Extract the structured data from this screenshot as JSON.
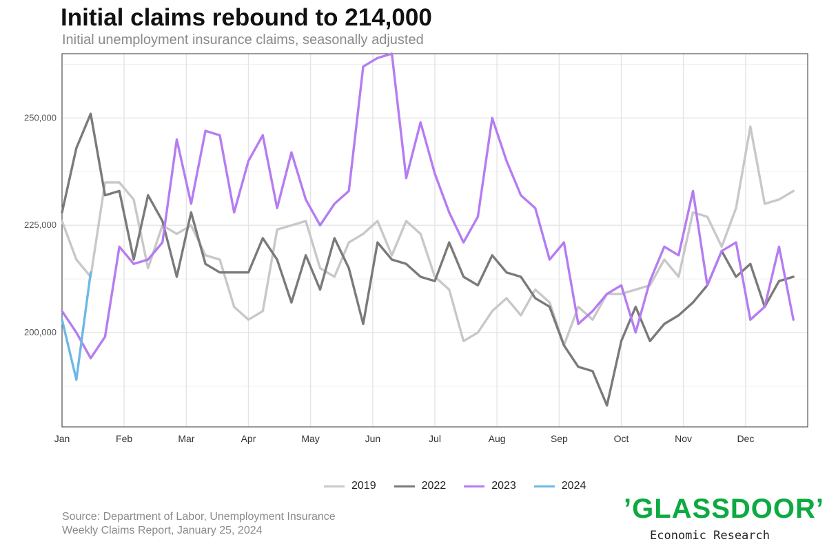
{
  "header": {
    "title": "Initial claims rebound to 214,000",
    "subtitle": "Initial unemployment insurance claims, seasonally adjusted"
  },
  "chart_data": {
    "type": "line",
    "title": "Initial claims rebound to 214,000",
    "subtitle": "Initial unemployment insurance claims, seasonally adjusted",
    "xlabel": "",
    "ylabel": "",
    "x_unit": "week of year",
    "x_ticks": [
      "Jan",
      "Feb",
      "Mar",
      "Apr",
      "May",
      "Jun",
      "Jul",
      "Aug",
      "Sep",
      "Oct",
      "Nov",
      "Dec"
    ],
    "y_ticks": [
      "200,000",
      "225,000",
      "250,000"
    ],
    "ylim": [
      178000,
      265000
    ],
    "grid": true,
    "legend": "bottom",
    "series": [
      {
        "name": "2019",
        "color": "#c8c8c8",
        "x": [
          1,
          2,
          3,
          4,
          5,
          6,
          7,
          8,
          9,
          10,
          11,
          12,
          13,
          14,
          15,
          16,
          17,
          18,
          19,
          20,
          21,
          22,
          23,
          24,
          25,
          26,
          27,
          28,
          29,
          30,
          31,
          32,
          33,
          34,
          35,
          36,
          37,
          38,
          39,
          40,
          41,
          42,
          43,
          44,
          45,
          46,
          47,
          48,
          49,
          50,
          51,
          52
        ],
        "values": [
          226000,
          217000,
          213000,
          235000,
          235000,
          231000,
          215000,
          225000,
          223000,
          225000,
          218000,
          217000,
          206000,
          203000,
          205000,
          224000,
          225000,
          226000,
          215000,
          213000,
          221000,
          223000,
          226000,
          218000,
          226000,
          223000,
          213000,
          210000,
          198000,
          200000,
          205000,
          208000,
          204000,
          210000,
          207000,
          197000,
          206000,
          203000,
          209000,
          209000,
          210000,
          211000,
          217000,
          213000,
          228000,
          227000,
          220000,
          229000,
          248000,
          230000,
          231000,
          233000
        ]
      },
      {
        "name": "2022",
        "color": "#7a7a7a",
        "x": [
          1,
          2,
          3,
          4,
          5,
          6,
          7,
          8,
          9,
          10,
          11,
          12,
          13,
          14,
          15,
          16,
          17,
          18,
          19,
          20,
          21,
          22,
          23,
          24,
          25,
          26,
          27,
          28,
          29,
          30,
          31,
          32,
          33,
          34,
          35,
          36,
          37,
          38,
          39,
          40,
          41,
          42,
          43,
          44,
          45,
          46,
          47,
          48,
          49,
          50,
          51,
          52
        ],
        "values": [
          228000,
          243000,
          251000,
          232000,
          233000,
          217000,
          232000,
          226000,
          213000,
          228000,
          216000,
          214000,
          214000,
          214000,
          222000,
          217000,
          207000,
          218000,
          210000,
          222000,
          215000,
          202000,
          221000,
          217000,
          216000,
          213000,
          212000,
          221000,
          213000,
          211000,
          218000,
          214000,
          213000,
          208000,
          206000,
          197000,
          192000,
          191000,
          183000,
          198000,
          206000,
          198000,
          202000,
          204000,
          207000,
          211000,
          219000,
          213000,
          216000,
          206000,
          212000,
          213000
        ]
      },
      {
        "name": "2023",
        "color": "#b57cf2",
        "x": [
          1,
          2,
          3,
          4,
          5,
          6,
          7,
          8,
          9,
          10,
          11,
          12,
          13,
          14,
          15,
          16,
          17,
          18,
          19,
          20,
          21,
          22,
          23,
          24,
          25,
          26,
          27,
          28,
          29,
          30,
          31,
          32,
          33,
          34,
          35,
          36,
          37,
          38,
          39,
          40,
          41,
          42,
          43,
          44,
          45,
          46,
          47,
          48,
          49,
          50,
          51,
          52
        ],
        "values": [
          205000,
          200000,
          194000,
          199000,
          220000,
          216000,
          217000,
          221000,
          245000,
          230000,
          247000,
          246000,
          228000,
          240000,
          246000,
          229000,
          242000,
          231000,
          225000,
          230000,
          233000,
          262000,
          264000,
          265000,
          236000,
          249000,
          237000,
          228000,
          221000,
          227000,
          250000,
          240000,
          232000,
          229000,
          217000,
          221000,
          202000,
          205000,
          209000,
          211000,
          200000,
          212000,
          220000,
          218000,
          233000,
          211000,
          219000,
          221000,
          203000,
          206000,
          220000,
          203000
        ]
      },
      {
        "name": "2024",
        "color": "#6cb8e6",
        "x": [
          1,
          2,
          3
        ],
        "values": [
          203000,
          189000,
          214000
        ]
      }
    ]
  },
  "source": {
    "line1": "Source: Department of Labor, Unemployment Insurance",
    "line2": "Weekly Claims Report, January 25, 2024"
  },
  "brand": {
    "logo": "’GLASSDOOR’",
    "sub": "Economic Research"
  }
}
